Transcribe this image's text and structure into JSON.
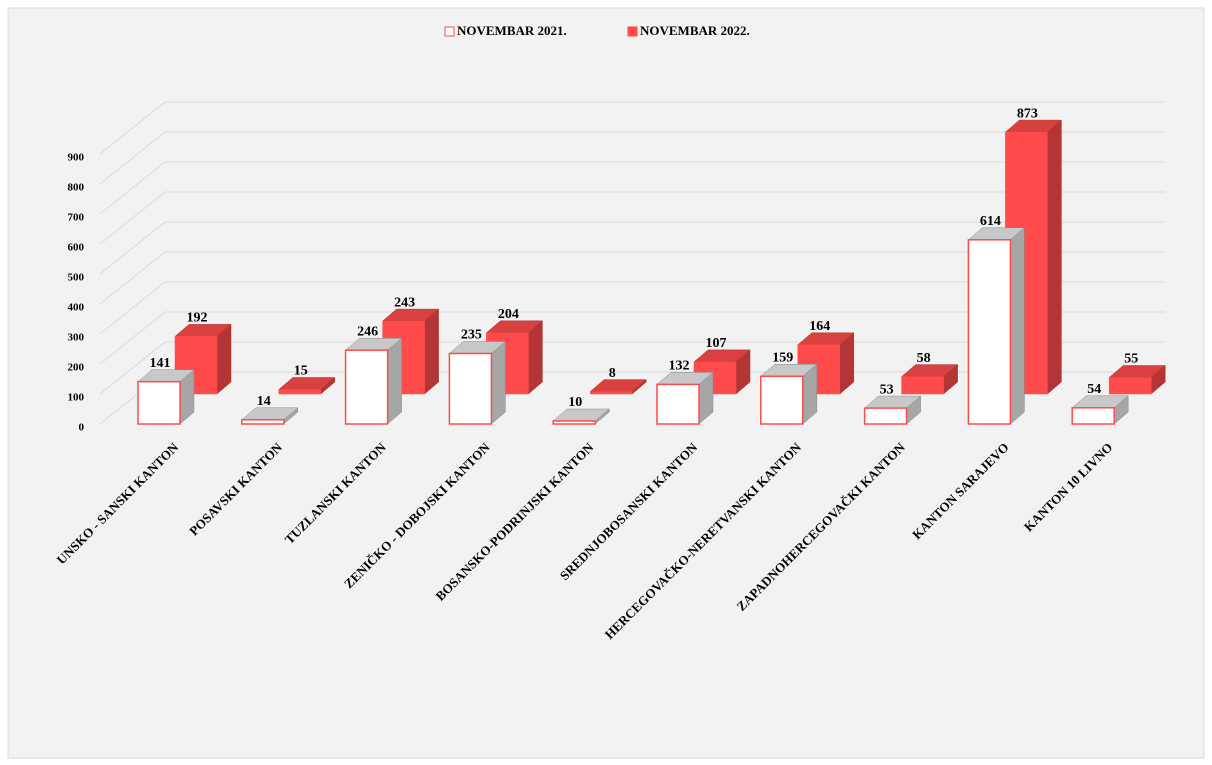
{
  "chart_data": {
    "type": "bar3d",
    "categories": [
      "UNSKO - SANSKI KANTON",
      "POSAVSKI KANTON",
      "TUZLANSKI KANTON",
      "ZENIČKO - DOBOJSKI KANTON",
      "BOSANSKO-PODRINJSKI KANTON",
      "SREDNJOBOSANSKI KANTON",
      "HERCEGOVAČKO-NERETVANSKI KANTON",
      "ZAPADNOHERCEGOVAČKI KANTON",
      "KANTON SARAJEVO",
      "KANTON 10 LIVNO"
    ],
    "series": [
      {
        "name": "NOVEMBAR 2021.",
        "color": "#ffffff",
        "values": [
          141,
          14,
          246,
          235,
          10,
          132,
          159,
          53,
          614,
          54
        ]
      },
      {
        "name": "NOVEMBAR  2022.",
        "color": "#ff4b4b",
        "values": [
          192,
          15,
          243,
          204,
          8,
          107,
          164,
          58,
          873,
          55
        ]
      }
    ],
    "ylim": [
      0,
      1000
    ],
    "yticks": [
      0,
      100,
      200,
      300,
      400,
      500,
      600,
      700,
      800,
      900
    ],
    "grid": true,
    "legend": "top"
  }
}
